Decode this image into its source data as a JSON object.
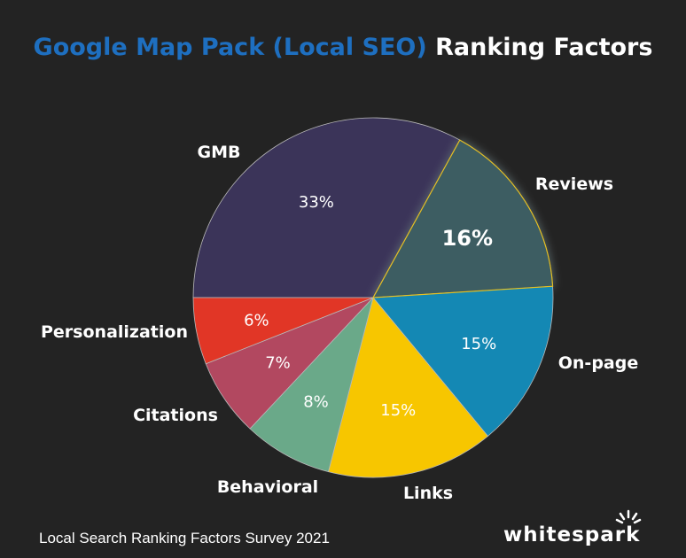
{
  "title": {
    "part1": "Google Map Pack (Local SEO)",
    "part2": "Ranking",
    "part3": "Factors"
  },
  "footer": {
    "source": "Local Search Ranking Factors Survey 2021",
    "brand": "whitespark"
  },
  "colors": {
    "background": "#232323",
    "title_blue": "#1e6fc0",
    "highlight": "#f5c400"
  },
  "chart_data": {
    "type": "pie",
    "slices": [
      {
        "label": "GMB",
        "value": 33,
        "display": "33%",
        "color": "#3b3459"
      },
      {
        "label": "Reviews",
        "value": 16,
        "display": "16%",
        "color": "#3d5d62",
        "highlight": true
      },
      {
        "label": "On-page",
        "value": 15,
        "display": "15%",
        "color": "#1488b4"
      },
      {
        "label": "Links",
        "value": 15,
        "display": "15%",
        "color": "#f7c600"
      },
      {
        "label": "Behavioral",
        "value": 8,
        "display": "8%",
        "color": "#6aa989"
      },
      {
        "label": "Citations",
        "value": 7,
        "display": "7%",
        "color": "#b24860"
      },
      {
        "label": "Personalization",
        "value": 6,
        "display": "6%",
        "color": "#e13626"
      }
    ]
  }
}
